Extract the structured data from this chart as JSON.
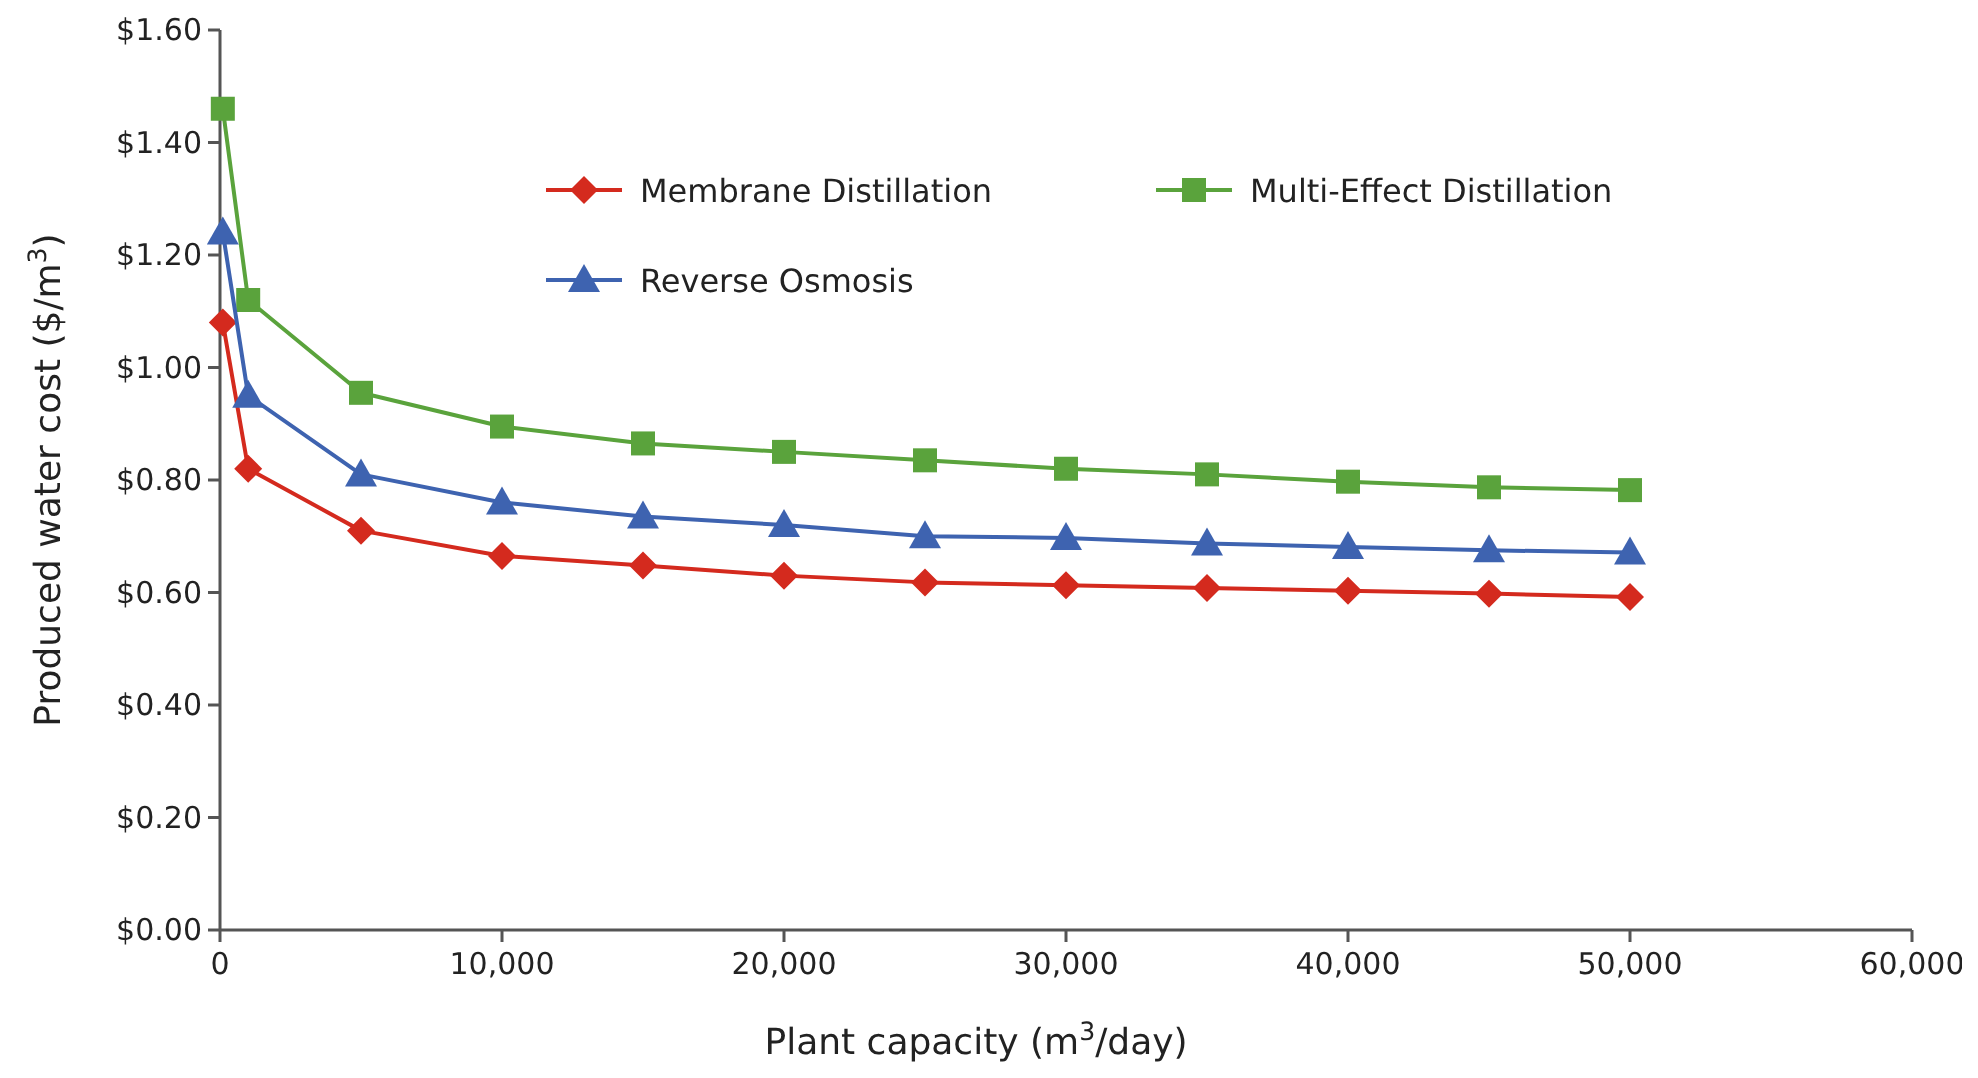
{
  "chart_data": {
    "type": "line",
    "xlabel": "Plant capacity (m$^{3}$/day)",
    "ylabel": "Produced water cost ($/m$^{3}$)",
    "x": [
      100,
      1000,
      5000,
      10000,
      15000,
      20000,
      25000,
      30000,
      35000,
      40000,
      45000,
      50000
    ],
    "series": [
      {
        "name": "Membrane Distillation",
        "color": "#d42a1e",
        "marker": "diamond",
        "values": [
          1.08,
          0.82,
          0.71,
          0.665,
          0.648,
          0.63,
          0.618,
          0.613,
          0.608,
          0.603,
          0.598,
          0.592
        ]
      },
      {
        "name": "Multi-Effect Distillation",
        "color": "#5aa33c",
        "marker": "square",
        "values": [
          1.46,
          1.12,
          0.955,
          0.895,
          0.865,
          0.85,
          0.835,
          0.82,
          0.81,
          0.797,
          0.787,
          0.782
        ]
      },
      {
        "name": "Reverse Osmosis",
        "color": "#3e63b0",
        "marker": "triangle",
        "values": [
          1.24,
          0.95,
          0.81,
          0.76,
          0.735,
          0.72,
          0.7,
          0.697,
          0.687,
          0.681,
          0.675,
          0.671
        ]
      }
    ],
    "xlim": [
      0,
      60000
    ],
    "xticks": [
      {
        "value": 0,
        "label": "0"
      },
      {
        "value": 10000,
        "label": "10,000"
      },
      {
        "value": 20000,
        "label": "20,000"
      },
      {
        "value": 30000,
        "label": "30,000"
      },
      {
        "value": 40000,
        "label": "40,000"
      },
      {
        "value": 50000,
        "label": "50,000"
      },
      {
        "value": 60000,
        "label": "60,000"
      }
    ],
    "ylim": [
      0,
      1.6
    ],
    "yticks": [
      {
        "value": 0,
        "label": "$0.00"
      },
      {
        "value": 0.2,
        "label": "$0.20"
      },
      {
        "value": 0.4,
        "label": "$0.40"
      },
      {
        "value": 0.6,
        "label": "$0.60"
      },
      {
        "value": 0.8,
        "label": "$0.80"
      },
      {
        "value": 1,
        "label": "$1.00"
      },
      {
        "value": 1.2,
        "label": "$1.20"
      },
      {
        "value": 1.4,
        "label": "$1.40"
      },
      {
        "value": 1.6,
        "label": "$1.60"
      }
    ],
    "grid": false,
    "legend": "top",
    "line_style": "solid"
  }
}
